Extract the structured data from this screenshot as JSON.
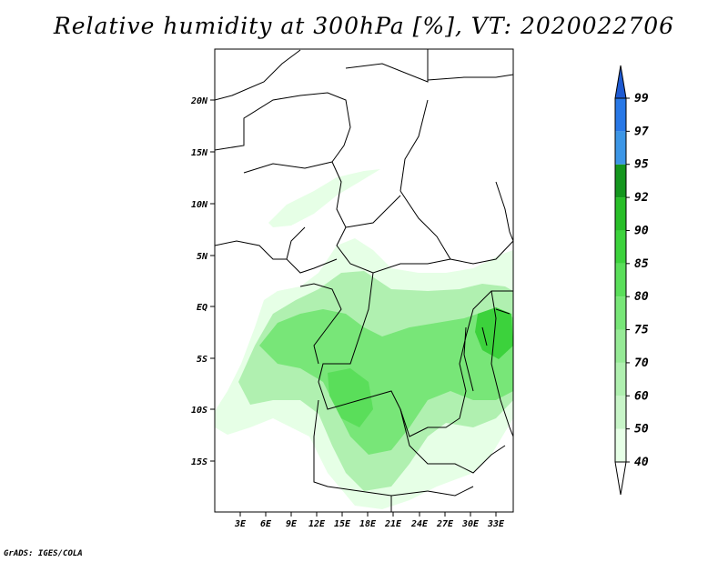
{
  "title": "Relative humidity at 300hPa [%], VT: 2020022706",
  "credit": "GrADS: IGES/COLA",
  "map": {
    "lat_ticks": [
      "20N",
      "15N",
      "10N",
      "5N",
      "EQ",
      "5S",
      "10S",
      "15S"
    ],
    "lon_ticks": [
      "3E",
      "6E",
      "9E",
      "12E",
      "15E",
      "18E",
      "21E",
      "24E",
      "27E",
      "30E",
      "33E"
    ]
  },
  "colorbar": {
    "levels": [
      "40",
      "50",
      "60",
      "70",
      "75",
      "80",
      "85",
      "90",
      "92",
      "95",
      "97",
      "99"
    ],
    "colors": [
      "#e6ffe6",
      "#c8f5c8",
      "#b0f0b0",
      "#96ea96",
      "#78e678",
      "#5ade5a",
      "#3cd23c",
      "#28be28",
      "#14961e",
      "#3c96e6",
      "#2878e6",
      "#1e5ad2"
    ],
    "over_color": "#1e5ad2",
    "under_color": "#ffffff"
  }
}
